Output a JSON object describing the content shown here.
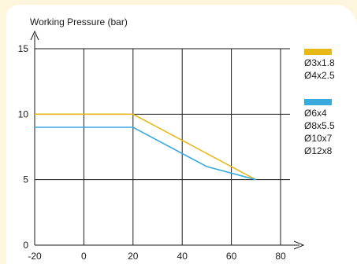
{
  "chart_data": {
    "type": "line",
    "ylabel": "Working Pressure (bar)",
    "xlabel": "",
    "xlim": [
      -20,
      80
    ],
    "ylim": [
      0,
      15
    ],
    "x_ticks": [
      "-20",
      "0",
      "20",
      "40",
      "60",
      "80"
    ],
    "y_ticks": [
      "0",
      "5",
      "10",
      "15"
    ],
    "grid": true,
    "legend_position": "right",
    "series": [
      {
        "color": "#e6b818",
        "legend_entries": [
          "Ø3x1.8",
          "Ø4x2.5"
        ],
        "x": [
          -20,
          20,
          70
        ],
        "y": [
          10,
          10,
          5
        ]
      },
      {
        "color": "#3aa9de",
        "legend_entries": [
          "Ø6x4",
          "Ø8x5.5",
          "Ø10x7",
          "Ø12x8"
        ],
        "x": [
          -20,
          20,
          50,
          70
        ],
        "y": [
          9,
          9,
          6,
          5
        ]
      }
    ]
  }
}
